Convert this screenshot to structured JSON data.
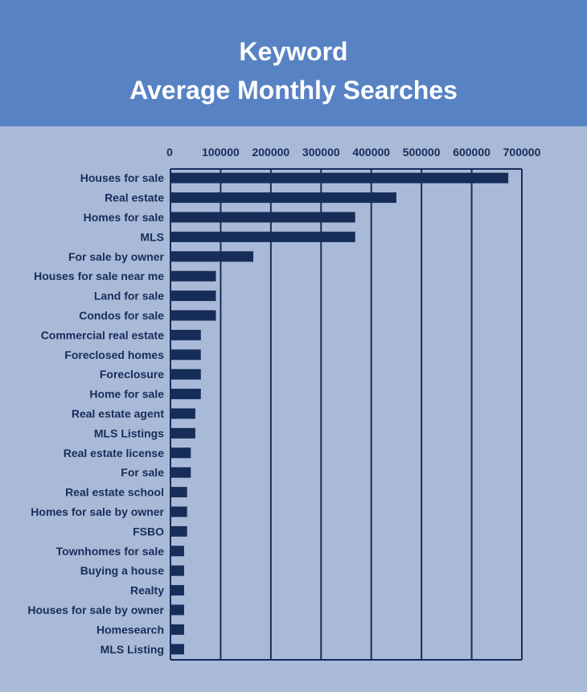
{
  "colors": {
    "header": "#5782c4",
    "background": "#a9bad9",
    "bar": "#172d59",
    "grid": "#172d59"
  },
  "chart_data": {
    "type": "bar",
    "orientation": "horizontal",
    "title": "Keyword",
    "subtitle": "Average Monthly Searches",
    "xlim": [
      0,
      700000
    ],
    "xticks": [
      "0",
      "100000",
      "200000",
      "300000",
      "400000",
      "500000",
      "600000",
      "700000"
    ],
    "xtick_values": [
      0,
      100000,
      200000,
      300000,
      400000,
      500000,
      600000,
      700000
    ],
    "grid": true,
    "categories": [
      "Houses for sale",
      "Real estate",
      "Homes for sale",
      "MLS",
      "For sale by owner",
      "Houses for sale near me",
      "Land for sale",
      "Condos for sale",
      "Commercial real estate",
      "Foreclosed homes",
      "Foreclosure",
      "Home for sale",
      "Real estate agent",
      "MLS Listings",
      "Real estate license",
      "For sale",
      "Real estate school",
      "Homes for sale by owner",
      "FSBO",
      "Townhomes for sale",
      "Buying a house",
      "Realty",
      "Houses for sale by owner",
      "Homesearch",
      "MLS Listing"
    ],
    "values": [
      673000,
      450000,
      368000,
      368000,
      165000,
      90500,
      90500,
      90500,
      60500,
      60500,
      60500,
      60500,
      49500,
      49500,
      40500,
      40500,
      33100,
      33100,
      33100,
      27100,
      27100,
      27100,
      27100,
      27100,
      27100
    ]
  }
}
